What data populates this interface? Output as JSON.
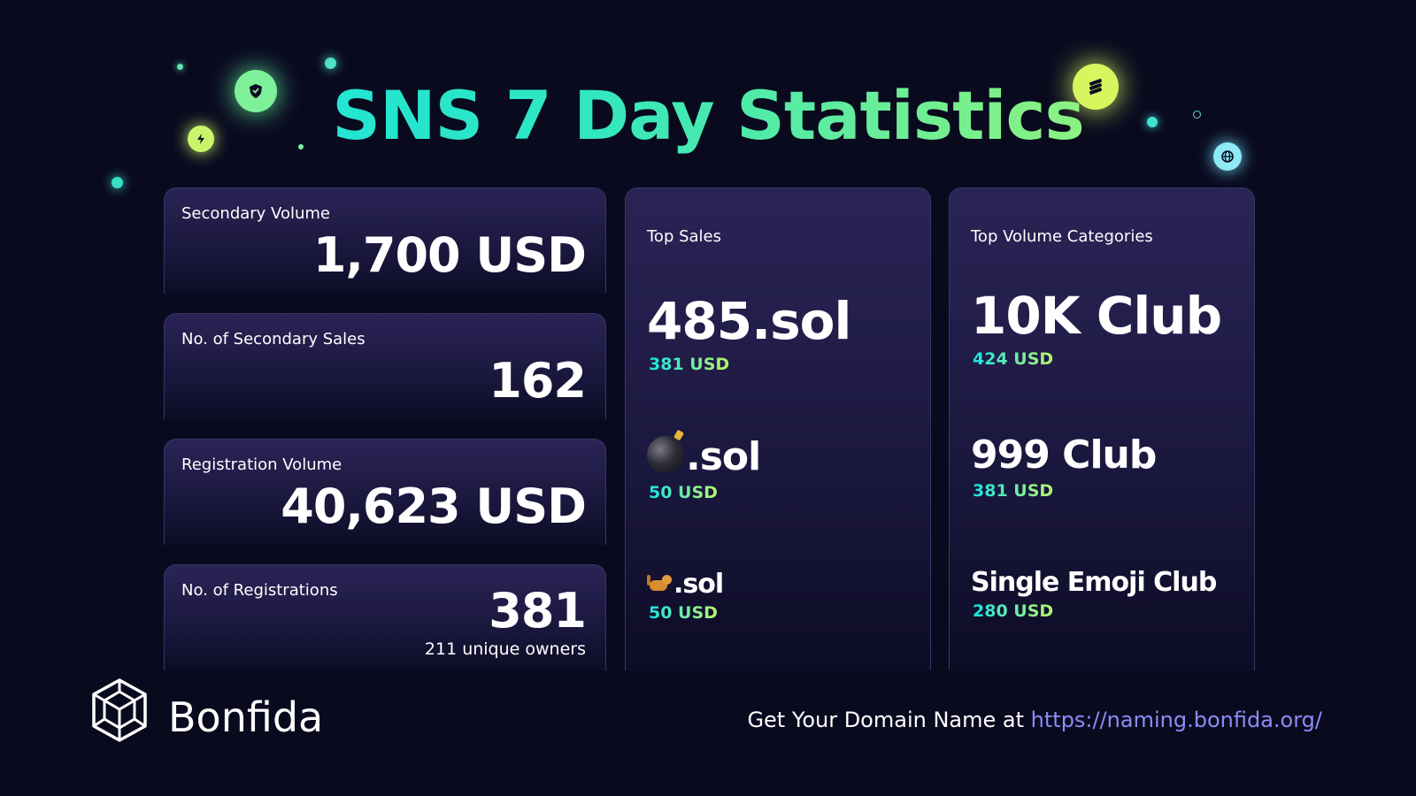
{
  "title": "SNS 7 Day Statistics",
  "stats": [
    {
      "label": "Secondary Volume",
      "value": "1,700 USD"
    },
    {
      "label": "No. of Secondary Sales",
      "value": "162"
    },
    {
      "label": "Registration Volume",
      "value": "40,623 USD"
    },
    {
      "label": "No. of Registrations",
      "value": "381",
      "sub": "211 unique owners"
    }
  ],
  "top_sales": {
    "label": "Top Sales",
    "items": [
      {
        "name": "485.sol",
        "price": "381 USD"
      },
      {
        "emoji_icon": "bomb-emoji",
        "name": ".sol",
        "price": "50 USD"
      },
      {
        "emoji_icon": "cat-emoji",
        "name": ".sol",
        "price": "50 USD"
      }
    ]
  },
  "top_categories": {
    "label": "Top Volume Categories",
    "items": [
      {
        "name": "10K Club",
        "price": "424 USD"
      },
      {
        "name": "999 Club",
        "price": "381 USD"
      },
      {
        "name": "Single Emoji Club",
        "price": "280 USD"
      }
    ]
  },
  "footer": {
    "brand": "Bonfida",
    "cta_text": "Get Your Domain Name at",
    "cta_link": "https://naming.bonfida.org/"
  },
  "colors": {
    "background": "#0a0a1f",
    "title_gradient_start": "#14e3e8",
    "title_gradient_end": "#c9f56a",
    "link": "#8b8cf6"
  }
}
